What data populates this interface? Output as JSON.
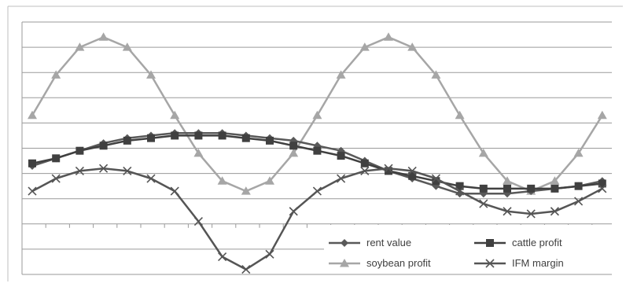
{
  "chart_data": {
    "type": "line",
    "title": "",
    "xlabel": "",
    "ylabel": "",
    "x": [
      1,
      2,
      3,
      4,
      5,
      6,
      7,
      8,
      9,
      10,
      11,
      12,
      13,
      14,
      15,
      16,
      17,
      18,
      19,
      20,
      21,
      22,
      23,
      24,
      25
    ],
    "ylim": [
      0,
      10
    ],
    "grid": true,
    "legend_position": "bottom-right",
    "series": [
      {
        "name": "rent value",
        "color": "#595959",
        "marker": "diamond",
        "values": [
          4.3,
          4.6,
          4.9,
          5.2,
          5.4,
          5.5,
          5.6,
          5.6,
          5.6,
          5.5,
          5.4,
          5.3,
          5.1,
          4.9,
          4.5,
          4.1,
          3.8,
          3.5,
          3.2,
          3.2,
          3.2,
          3.3,
          3.4,
          3.5,
          3.7
        ]
      },
      {
        "name": "cattle profit",
        "color": "#404040",
        "marker": "square",
        "values": [
          4.4,
          4.6,
          4.9,
          5.1,
          5.3,
          5.4,
          5.5,
          5.5,
          5.5,
          5.4,
          5.3,
          5.1,
          4.9,
          4.7,
          4.4,
          4.1,
          3.9,
          3.7,
          3.5,
          3.4,
          3.4,
          3.4,
          3.4,
          3.5,
          3.6
        ]
      },
      {
        "name": "soybean profit",
        "color": "#a6a6a6",
        "marker": "triangle",
        "values": [
          6.3,
          7.9,
          9.0,
          9.4,
          9.0,
          7.9,
          6.3,
          4.8,
          3.7,
          3.3,
          3.7,
          4.8,
          6.3,
          7.9,
          9.0,
          9.4,
          9.0,
          7.9,
          6.3,
          4.8,
          3.7,
          3.3,
          3.7,
          4.8,
          6.3
        ]
      },
      {
        "name": "IFM margin",
        "color": "#555555",
        "marker": "x",
        "values": [
          3.3,
          3.8,
          4.1,
          4.2,
          4.1,
          3.8,
          3.3,
          2.1,
          0.7,
          0.2,
          0.8,
          2.5,
          3.3,
          3.8,
          4.1,
          4.2,
          4.1,
          3.8,
          3.3,
          2.8,
          2.5,
          2.4,
          2.5,
          2.9,
          3.4
        ]
      }
    ]
  }
}
